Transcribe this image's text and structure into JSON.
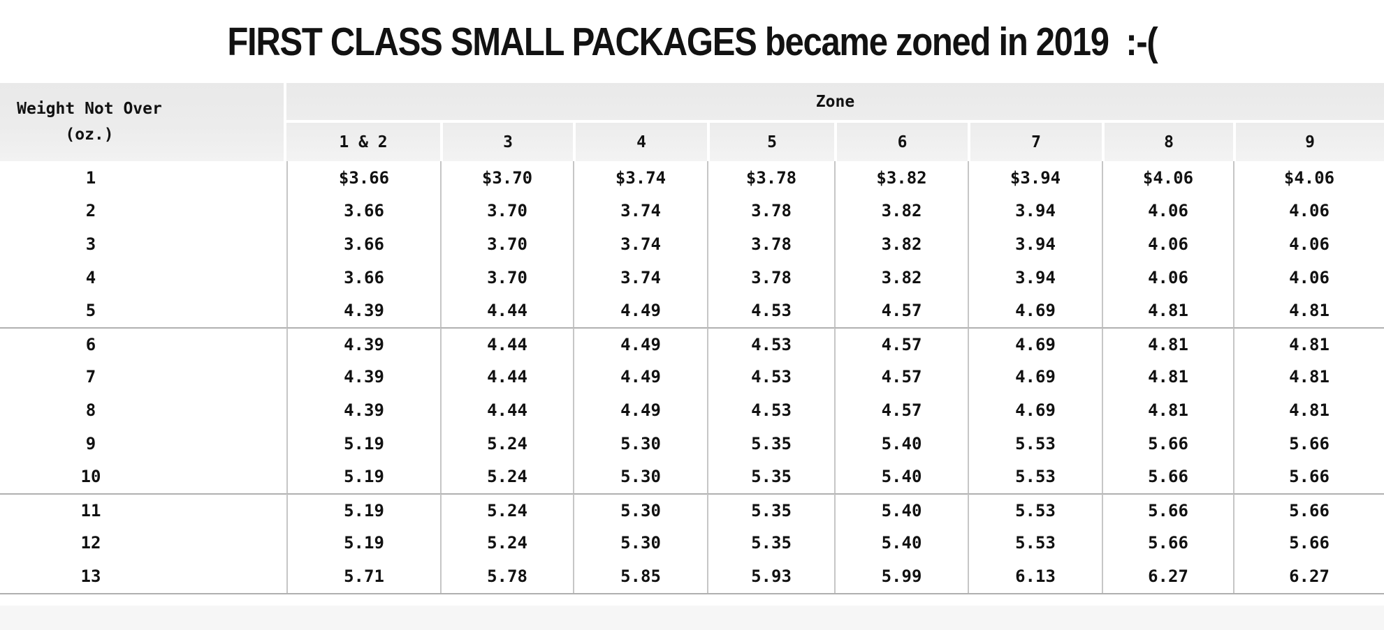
{
  "title": "FIRST CLASS SMALL PACKAGES became zoned in 2019  :-(",
  "table": {
    "weight_header": {
      "line1": "Weight Not Over",
      "line2": "(oz.)"
    },
    "zone_group_label": "Zone"
  },
  "colors": {
    "header_bg": "#ececec",
    "grid_line_vertical": "#c6c6c6",
    "group_divider_line": "#b0b0b0",
    "bottom_band": "#f6f6f6",
    "text": "#111111"
  },
  "chart_data": {
    "type": "table",
    "title": "FIRST CLASS SMALL PACKAGES became zoned in 2019  :-(",
    "zone_group_header": "Zone",
    "weight_column_header": "Weight Not Over (oz.)",
    "zone_columns": [
      "1 & 2",
      "3",
      "4",
      "5",
      "6",
      "7",
      "8",
      "9"
    ],
    "row_groups": [
      [
        [
          "1",
          "$3.66",
          "$3.70",
          "$3.74",
          "$3.78",
          "$3.82",
          "$3.94",
          "$4.06",
          "$4.06"
        ],
        [
          "2",
          "3.66",
          "3.70",
          "3.74",
          "3.78",
          "3.82",
          "3.94",
          "4.06",
          "4.06"
        ],
        [
          "3",
          "3.66",
          "3.70",
          "3.74",
          "3.78",
          "3.82",
          "3.94",
          "4.06",
          "4.06"
        ],
        [
          "4",
          "3.66",
          "3.70",
          "3.74",
          "3.78",
          "3.82",
          "3.94",
          "4.06",
          "4.06"
        ],
        [
          "5",
          "4.39",
          "4.44",
          "4.49",
          "4.53",
          "4.57",
          "4.69",
          "4.81",
          "4.81"
        ]
      ],
      [
        [
          "6",
          "4.39",
          "4.44",
          "4.49",
          "4.53",
          "4.57",
          "4.69",
          "4.81",
          "4.81"
        ],
        [
          "7",
          "4.39",
          "4.44",
          "4.49",
          "4.53",
          "4.57",
          "4.69",
          "4.81",
          "4.81"
        ],
        [
          "8",
          "4.39",
          "4.44",
          "4.49",
          "4.53",
          "4.57",
          "4.69",
          "4.81",
          "4.81"
        ],
        [
          "9",
          "5.19",
          "5.24",
          "5.30",
          "5.35",
          "5.40",
          "5.53",
          "5.66",
          "5.66"
        ],
        [
          "10",
          "5.19",
          "5.24",
          "5.30",
          "5.35",
          "5.40",
          "5.53",
          "5.66",
          "5.66"
        ]
      ],
      [
        [
          "11",
          "5.19",
          "5.24",
          "5.30",
          "5.35",
          "5.40",
          "5.53",
          "5.66",
          "5.66"
        ],
        [
          "12",
          "5.19",
          "5.24",
          "5.30",
          "5.35",
          "5.40",
          "5.53",
          "5.66",
          "5.66"
        ],
        [
          "13",
          "5.71",
          "5.78",
          "5.85",
          "5.93",
          "5.99",
          "6.13",
          "6.27",
          "6.27"
        ]
      ]
    ]
  }
}
